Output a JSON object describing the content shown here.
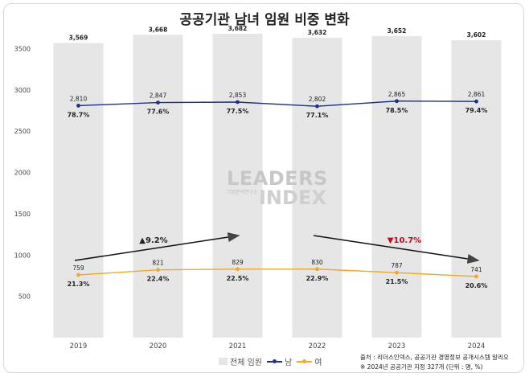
{
  "title": "공공기관 남녀 임원 비중 변화",
  "chart_data": {
    "type": "bar",
    "categories": [
      "2019",
      "2020",
      "2021",
      "2022",
      "2023",
      "2024"
    ],
    "ylim": [
      0,
      3700
    ],
    "yticks": [
      500,
      1000,
      1500,
      2000,
      2500,
      3000,
      3500
    ],
    "series": [
      {
        "name": "전체 임원",
        "type": "bar",
        "color": "#e6e6e6",
        "values": [
          3569,
          3668,
          3682,
          3632,
          3652,
          3602
        ],
        "labels": [
          "3,569",
          "3,668",
          "3,682",
          "3,632",
          "3,652",
          "3,602"
        ]
      },
      {
        "name": "남",
        "type": "line",
        "color": "#1a2f8f",
        "values": [
          2810,
          2847,
          2853,
          2802,
          2865,
          2861
        ],
        "labels": [
          "2,810",
          "2,847",
          "2,853",
          "2,802",
          "2,865",
          "2,861"
        ],
        "pct": [
          "78.7%",
          "77.6%",
          "77.5%",
          "77.1%",
          "78.5%",
          "79.4%"
        ]
      },
      {
        "name": "여",
        "type": "line",
        "color": "#f5a623",
        "values": [
          759,
          821,
          829,
          830,
          787,
          741
        ],
        "labels": [
          "759",
          "821",
          "829",
          "830",
          "787",
          "741"
        ],
        "pct": [
          "21.3%",
          "22.4%",
          "22.5%",
          "22.9%",
          "21.5%",
          "20.6%"
        ]
      }
    ],
    "annotations": [
      {
        "text": "▲9.2%",
        "color": "#222222"
      },
      {
        "text": "▼10.7%",
        "color": "#d0021b"
      }
    ]
  },
  "logo": {
    "word": "LEADERS",
    "sub": "기업분석연구소",
    "mark": "INDEX"
  },
  "source": {
    "line1": "출처 : 리더스인덱스, 공공기관 경영정보 공개시스템 알리오",
    "line2": "※ 2024년 공공기관 지정 327개 (단위 : 명, %)"
  }
}
